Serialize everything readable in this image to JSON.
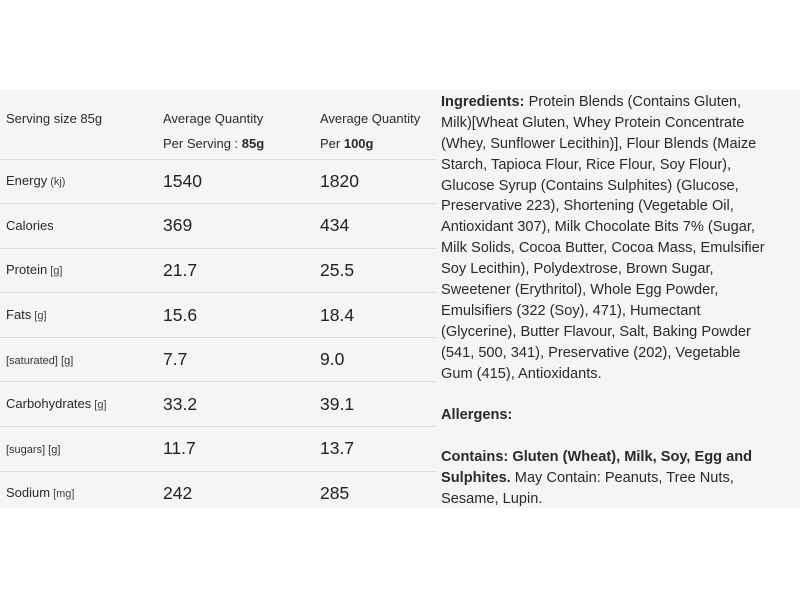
{
  "nutrition": {
    "header": {
      "serving_size": "Serving size 85g",
      "per_serving_line1": "Average Quantity",
      "per_serving_line2_prefix": "Per Serving : ",
      "per_serving_line2_bold": "85g",
      "per_100g_line1": "Average Quantity",
      "per_100g_line2_prefix": "Per ",
      "per_100g_line2_bold": "100g"
    },
    "rows": [
      {
        "label": "Energy",
        "unit": "(kj)",
        "per_serving": "1540",
        "per_100g": "1820"
      },
      {
        "label": "Calories",
        "unit": "",
        "per_serving": "369",
        "per_100g": "434"
      },
      {
        "label": "Protein",
        "unit": "[g]",
        "per_serving": "21.7",
        "per_100g": "25.5"
      },
      {
        "label": "Fats",
        "unit": "[g]",
        "per_serving": "15.6",
        "per_100g": "18.4"
      },
      {
        "label": "[saturated] [g]",
        "unit": "",
        "per_serving": "7.7",
        "per_100g": "9.0"
      },
      {
        "label": "Carbohydrates",
        "unit": "[g]",
        "per_serving": "33.2",
        "per_100g": "39.1"
      },
      {
        "label": "[sugars] [g]",
        "unit": "",
        "per_serving": "11.7",
        "per_100g": "13.7"
      },
      {
        "label": "Sodium",
        "unit": "[mg]",
        "per_serving": "242",
        "per_100g": "285"
      }
    ]
  },
  "ingredients": {
    "heading": "Ingredients:",
    "lines": [
      " Protein Blends (Contains Gluten,",
      "Milk)[Wheat Gluten, Whey Protein Concentrate",
      "(Whey, Sunflower Lecithin)], Flour Blends (Maize",
      "Starch, Tapioca Flour, Rice Flour, Soy Flour),",
      "Glucose Syrup (Contains Sulphites) (Glucose,",
      "Preservative 223), Shortening (Vegetable Oil,",
      "Antioxidant 307), Milk Chocolate Bits 7% (Sugar,",
      "Milk Solids, Cocoa Butter, Cocoa Mass, Emulsifier",
      "Soy Lecithin), Polydextrose, Brown Sugar,",
      "Sweetener (Erythritol), Whole Egg Powder,",
      "Emulsifiers (322 (Soy), 471), Humectant",
      "(Glycerine), Butter Flavour, Salt, Baking Powder",
      "(541, 500, 341), Preservative (202), Vegetable",
      "Gum (415), Antioxidants."
    ]
  },
  "allergens": {
    "heading": "Allergens:",
    "contains_line1_bold": "Contains: Gluten (Wheat), Milk, Soy, Egg and",
    "contains_line2_bold": "Sulphites.",
    "contains_line2_rest": " May Contain: Peanuts, Tree Nuts,",
    "contains_line3": "Sesame, Lupin."
  }
}
